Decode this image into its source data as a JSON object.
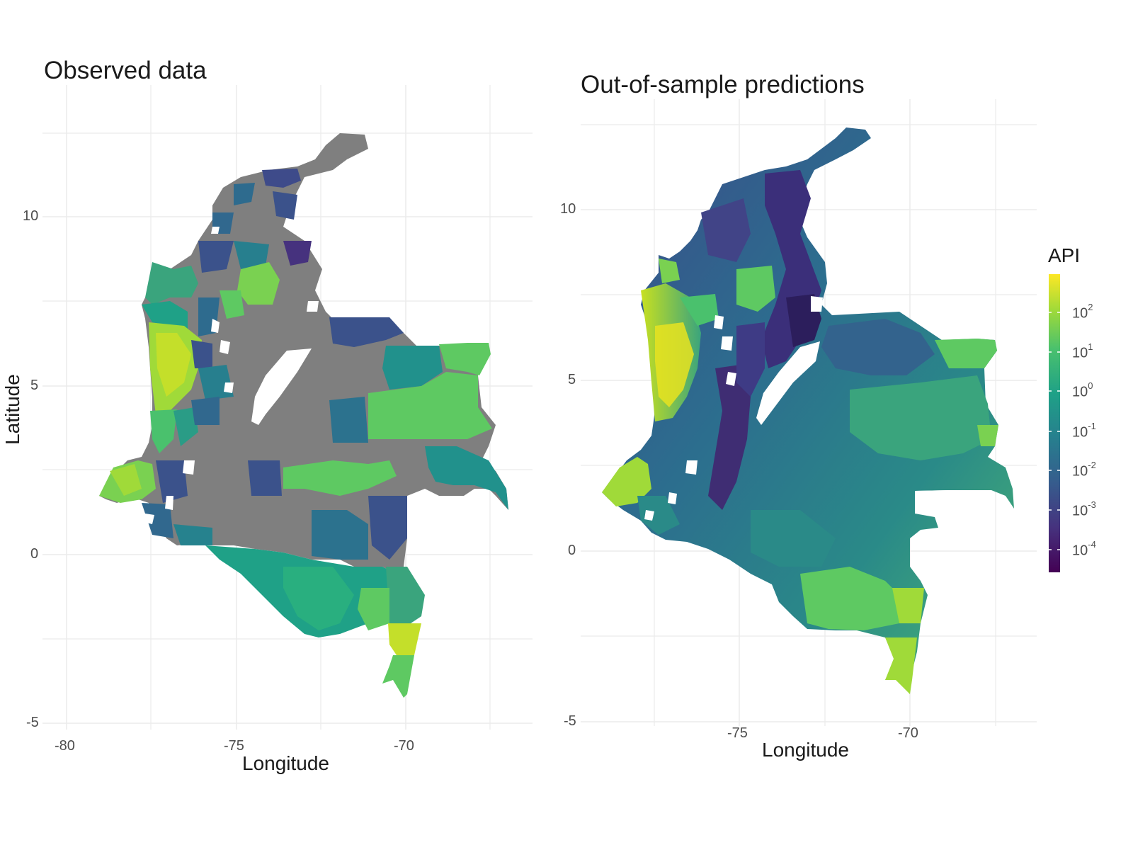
{
  "left_panel": {
    "title": "Observed data",
    "xlabel": "Longitude",
    "ylabel": "Latitude",
    "x_ticks": [
      "-80",
      "-75",
      "-70"
    ],
    "y_ticks": [
      "10",
      "5",
      "0",
      "-5"
    ]
  },
  "right_panel": {
    "title": "Out-of-sample predictions",
    "xlabel": "Longitude",
    "x_ticks": [
      "-75",
      "-70"
    ],
    "y_ticks": [
      "10",
      "5",
      "0",
      "-5"
    ]
  },
  "legend": {
    "title": "API",
    "scale": "log10",
    "ticks": [
      {
        "base": "10",
        "exp": "2"
      },
      {
        "base": "10",
        "exp": "1"
      },
      {
        "base": "10",
        "exp": "0"
      },
      {
        "base": "10",
        "exp": "-1"
      },
      {
        "base": "10",
        "exp": "-2"
      },
      {
        "base": "10",
        "exp": "-3"
      },
      {
        "base": "10",
        "exp": "-4"
      }
    ],
    "colormap": [
      "#440154",
      "#3b528b",
      "#21918c",
      "#5ec962",
      "#fde725"
    ]
  },
  "colors": {
    "missing": "#7f7f7f",
    "grid": "#ebebeb"
  }
}
